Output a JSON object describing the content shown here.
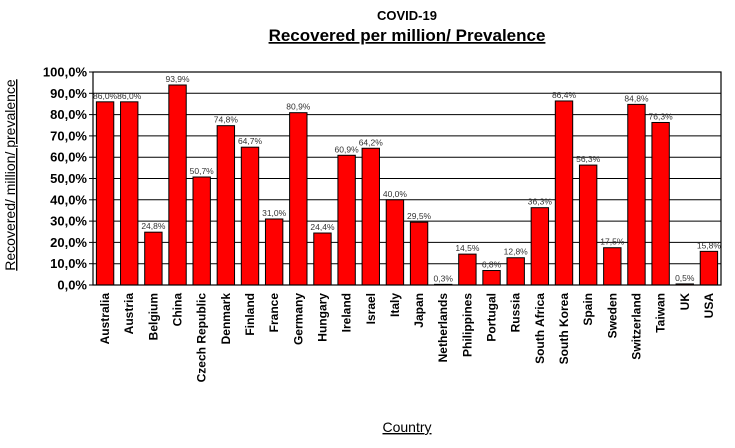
{
  "chart_data": {
    "type": "bar",
    "title": "COVID-19",
    "subtitle": "Recovered per million/ Prevalence",
    "xlabel": "Country",
    "ylabel": "Recovered/ million/ prevalence",
    "ylim": [
      0,
      100
    ],
    "ytick_labels": [
      "0,0%",
      "10,0%",
      "20,0%",
      "30,0%",
      "40,0%",
      "50,0%",
      "60,0%",
      "70,0%",
      "80,0%",
      "90,0%",
      "100,0%"
    ],
    "grid": "horizontal",
    "legend": "none",
    "bar_color": "#ff0000",
    "bar_edge_color": "#000000",
    "categories": [
      "Australia",
      "Austria",
      "Belgium",
      "China",
      "Czech Republic",
      "Denmark",
      "Finland",
      "France",
      "Germany",
      "Hungary",
      "Ireland",
      "Israel",
      "Italy",
      "Japan",
      "Netherlands",
      "Philippines",
      "Portugal",
      "Russia",
      "South Africa",
      "South Korea",
      "Spain",
      "Sweden",
      "Switzerland",
      "Taiwan",
      "UK",
      "USA"
    ],
    "values": [
      86.0,
      86.0,
      24.8,
      93.9,
      50.7,
      74.8,
      64.7,
      31.0,
      80.9,
      24.4,
      60.9,
      64.2,
      40.0,
      29.5,
      0.3,
      14.5,
      6.8,
      12.8,
      36.3,
      86.4,
      56.3,
      17.5,
      84.8,
      76.3,
      0.5,
      15.8
    ],
    "data_labels": [
      "86,0%",
      "86,0%",
      "24,8%",
      "93,9%",
      "50,7%",
      "74,8%",
      "64,7%",
      "31,0%",
      "80,9%",
      "24,4%",
      "60,9%",
      "64,2%",
      "40,0%",
      "29,5%",
      "0,3%",
      "14,5%",
      "6,8%",
      "12,8%",
      "36,3%",
      "86,4%",
      "56,3%",
      "17,5%",
      "84,8%",
      "76,3%",
      "0,5%",
      "15,8%"
    ]
  }
}
